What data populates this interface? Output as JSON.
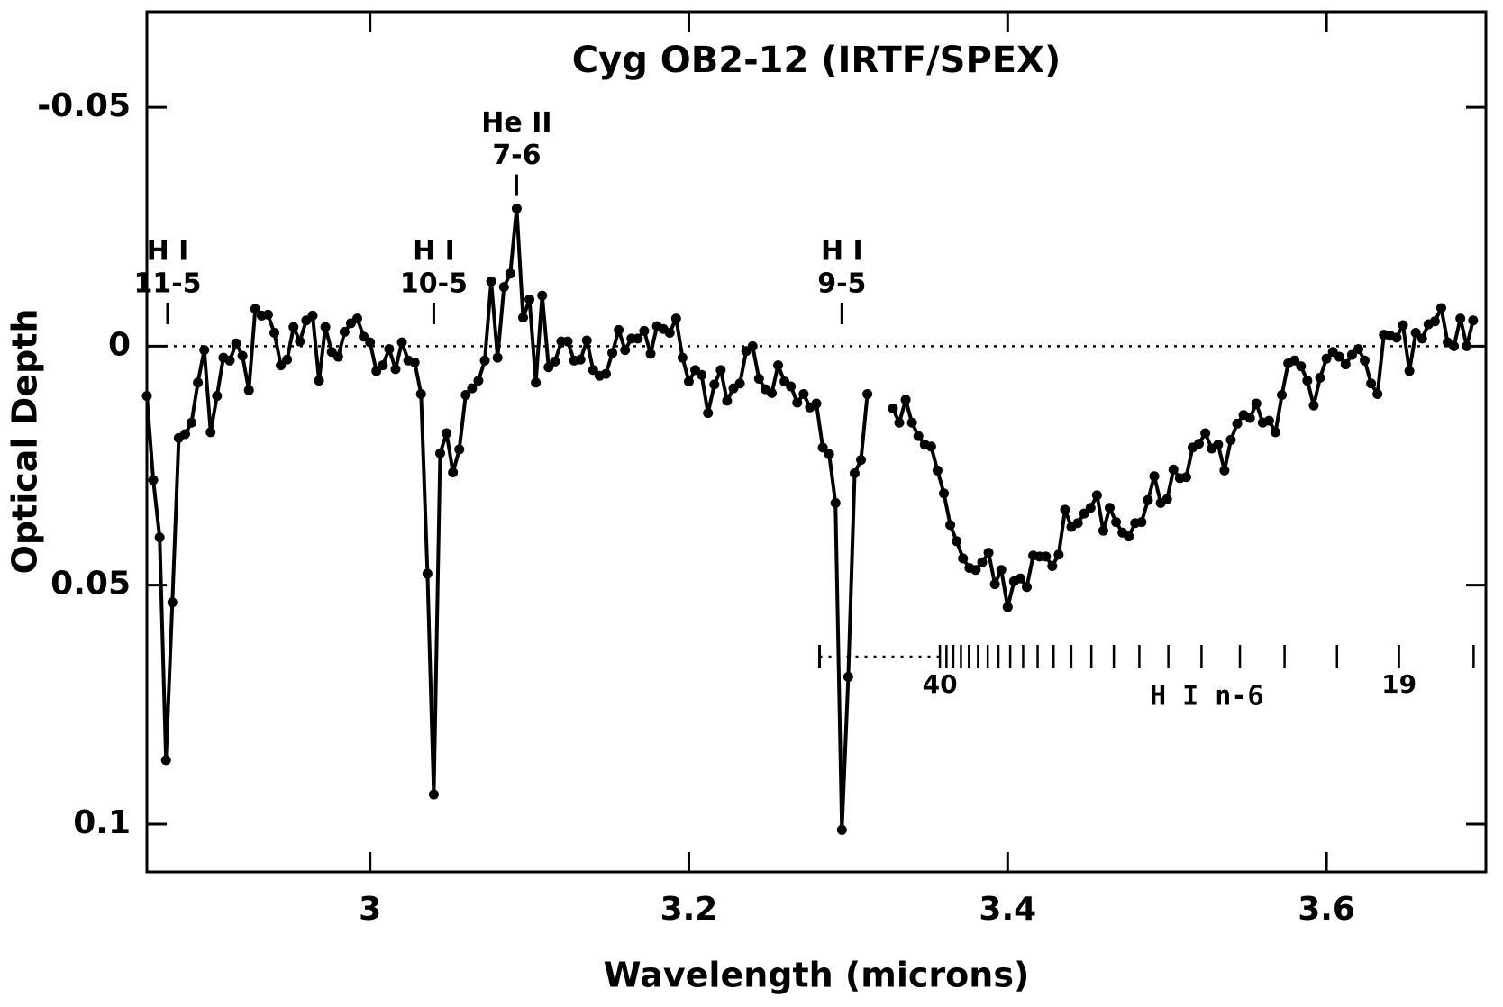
{
  "chart_data": {
    "type": "line",
    "title": "Cyg OB2-12 (IRTF/SPEX)",
    "x_label": "Wavelength (microns)",
    "y_label": "Optical Depth",
    "xlim": [
      2.86,
      3.7
    ],
    "ylim": [
      -0.07,
      0.11
    ],
    "y_inverted": true,
    "xticks": [
      3,
      3.2,
      3.4,
      3.6
    ],
    "yticks": [
      -0.05,
      0,
      0.05,
      0.1
    ],
    "zero_line": true,
    "color": "#000000",
    "x": [
      2.86,
      2.864,
      2.868,
      2.872,
      2.876,
      2.88,
      2.884,
      2.888,
      2.892,
      2.896,
      2.9,
      2.904,
      2.908,
      2.912,
      2.916,
      2.92,
      2.924,
      2.928,
      2.932,
      2.936,
      2.94,
      2.944,
      2.948,
      2.952,
      2.956,
      2.96,
      2.964,
      2.968,
      2.972,
      2.976,
      2.98,
      2.984,
      2.988,
      2.992,
      2.996,
      3.0,
      3.004,
      3.008,
      3.012,
      3.016,
      3.02,
      3.024,
      3.028,
      3.032,
      3.036,
      3.04,
      3.044,
      3.048,
      3.052,
      3.056,
      3.06,
      3.064,
      3.068,
      3.072,
      3.076,
      3.08,
      3.084,
      3.088,
      3.092,
      3.096,
      3.1,
      3.104,
      3.108,
      3.112,
      3.116,
      3.12,
      3.124,
      3.128,
      3.132,
      3.136,
      3.14,
      3.144,
      3.148,
      3.152,
      3.156,
      3.16,
      3.164,
      3.168,
      3.172,
      3.176,
      3.18,
      3.184,
      3.188,
      3.192,
      3.196,
      3.2,
      3.204,
      3.208,
      3.212,
      3.216,
      3.22,
      3.224,
      3.228,
      3.232,
      3.236,
      3.24,
      3.244,
      3.248,
      3.252,
      3.256,
      3.26,
      3.264,
      3.268,
      3.272,
      3.276,
      3.28,
      3.284,
      3.288,
      3.292,
      3.296,
      3.3,
      3.304,
      3.308,
      3.312,
      3.316,
      3.32,
      3.324,
      3.328,
      3.332,
      3.336,
      3.34,
      3.344,
      3.348,
      3.352,
      3.356,
      3.36,
      3.364,
      3.368,
      3.372,
      3.376,
      3.38,
      3.384,
      3.388,
      3.392,
      3.396,
      3.4,
      3.404,
      3.408,
      3.412,
      3.416,
      3.42,
      3.424,
      3.428,
      3.432,
      3.436,
      3.44,
      3.444,
      3.448,
      3.452,
      3.456,
      3.46,
      3.464,
      3.468,
      3.472,
      3.476,
      3.48,
      3.484,
      3.488,
      3.492,
      3.496,
      3.5,
      3.504,
      3.508,
      3.512,
      3.516,
      3.52,
      3.524,
      3.528,
      3.532,
      3.536,
      3.54,
      3.544,
      3.548,
      3.552,
      3.556,
      3.56,
      3.564,
      3.568,
      3.572,
      3.576,
      3.58,
      3.584,
      3.588,
      3.592,
      3.596,
      3.6,
      3.604,
      3.608,
      3.612,
      3.616,
      3.62,
      3.624,
      3.628,
      3.632,
      3.636,
      3.64,
      3.644,
      3.648,
      3.652,
      3.656,
      3.66,
      3.664,
      3.668,
      3.672,
      3.676,
      3.68,
      3.684,
      3.688,
      3.692
    ],
    "values": [
      0.0104,
      0.028,
      0.04,
      0.0866,
      0.0536,
      0.0192,
      0.0184,
      0.016,
      0.0076,
      0.0008,
      0.018,
      0.0104,
      0.0024,
      0.003,
      -0.0006,
      0.002,
      0.0092,
      -0.0078,
      -0.0064,
      -0.0066,
      -0.0028,
      0.004,
      0.0028,
      -0.004,
      -0.001,
      -0.0054,
      -0.0064,
      0.0072,
      -0.004,
      0.0012,
      0.0022,
      -0.003,
      -0.0048,
      -0.0058,
      -0.002,
      -0.0008,
      0.0052,
      0.004,
      0.0006,
      0.0048,
      -0.0008,
      0.003,
      0.0034,
      0.01,
      0.0476,
      0.0938,
      0.0224,
      0.0182,
      0.0264,
      0.0216,
      0.0102,
      0.0088,
      0.0072,
      0.003,
      -0.0136,
      0.0024,
      -0.0124,
      -0.0152,
      -0.0288,
      -0.006,
      -0.0098,
      0.0076,
      -0.0106,
      0.0044,
      0.0032,
      -0.001,
      -0.001,
      0.003,
      0.0028,
      -0.0012,
      0.005,
      0.0062,
      0.0058,
      0.0014,
      -0.0034,
      0.0008,
      -0.0016,
      -0.0016,
      -0.0032,
      0.0016,
      -0.0042,
      -0.0036,
      -0.0028,
      -0.0058,
      0.0024,
      0.0074,
      0.005,
      0.006,
      0.014,
      0.008,
      0.005,
      0.0114,
      0.0088,
      0.0078,
      0.001,
      0,
      0.0068,
      0.009,
      0.0098,
      0.004,
      0.0074,
      0.0084,
      0.0118,
      0.01,
      0.0128,
      0.012,
      0.0212,
      0.0226,
      0.0328,
      0.1012,
      0.0692,
      0.0266,
      0.0238,
      0.01,
      null,
      null,
      null,
      0.013,
      0.016,
      0.0112,
      0.016,
      0.0188,
      0.0206,
      0.021,
      0.026,
      0.0308,
      0.0374,
      0.0408,
      0.0444,
      0.0464,
      0.0468,
      0.0452,
      0.0432,
      0.0498,
      0.0468,
      0.0546,
      0.0492,
      0.0486,
      0.0504,
      0.0438,
      0.044,
      0.044,
      0.046,
      0.0436,
      0.0342,
      0.0378,
      0.037,
      0.035,
      0.0338,
      0.0312,
      0.0386,
      0.0338,
      0.0368,
      0.039,
      0.0398,
      0.037,
      0.0368,
      0.0322,
      0.0272,
      0.0328,
      0.032,
      0.0258,
      0.0276,
      0.0274,
      0.0212,
      0.0204,
      0.0182,
      0.0214,
      0.0206,
      0.026,
      0.0196,
      0.0162,
      0.0144,
      0.015,
      0.012,
      0.016,
      0.0156,
      0.018,
      0.0102,
      0.0036,
      0.003,
      0.0042,
      0.0072,
      0.0124,
      0.0066,
      0.0026,
      0.0012,
      0.0022,
      0.0038,
      0.0018,
      0.0006,
      0.003,
      0.0078,
      0.01,
      -0.0024,
      -0.0022,
      -0.0018,
      -0.0044,
      0.0052,
      -0.0028,
      -0.0016,
      -0.0046,
      -0.0052,
      -0.008,
      -0.0008,
      0,
      -0.0058,
      0,
      -0.0054
    ],
    "annotations": [
      {
        "x": 2.873,
        "text": [
          "H I",
          "11-5"
        ]
      },
      {
        "x": 3.04,
        "text": [
          "H I",
          "10-5"
        ]
      },
      {
        "x": 3.092,
        "text": [
          "He II",
          "7-6"
        ]
      },
      {
        "x": 3.296,
        "text": [
          "H I",
          "9-5"
        ]
      }
    ],
    "line_series": {
      "label": "H I n-6",
      "limit": 3.282,
      "lines": [
        {
          "value": 3.3575,
          "label": "40"
        },
        3.3616,
        3.3659,
        3.3707,
        3.3757,
        3.3814,
        3.3875,
        3.3942,
        3.4016,
        3.4097,
        3.4188,
        3.4288,
        3.4399,
        3.4525,
        3.4666,
        3.4826,
        3.5008,
        3.5216,
        3.5457,
        3.5737,
        3.6066,
        {
          "value": 3.6455,
          "label": "19"
        },
        3.6923
      ]
    }
  }
}
